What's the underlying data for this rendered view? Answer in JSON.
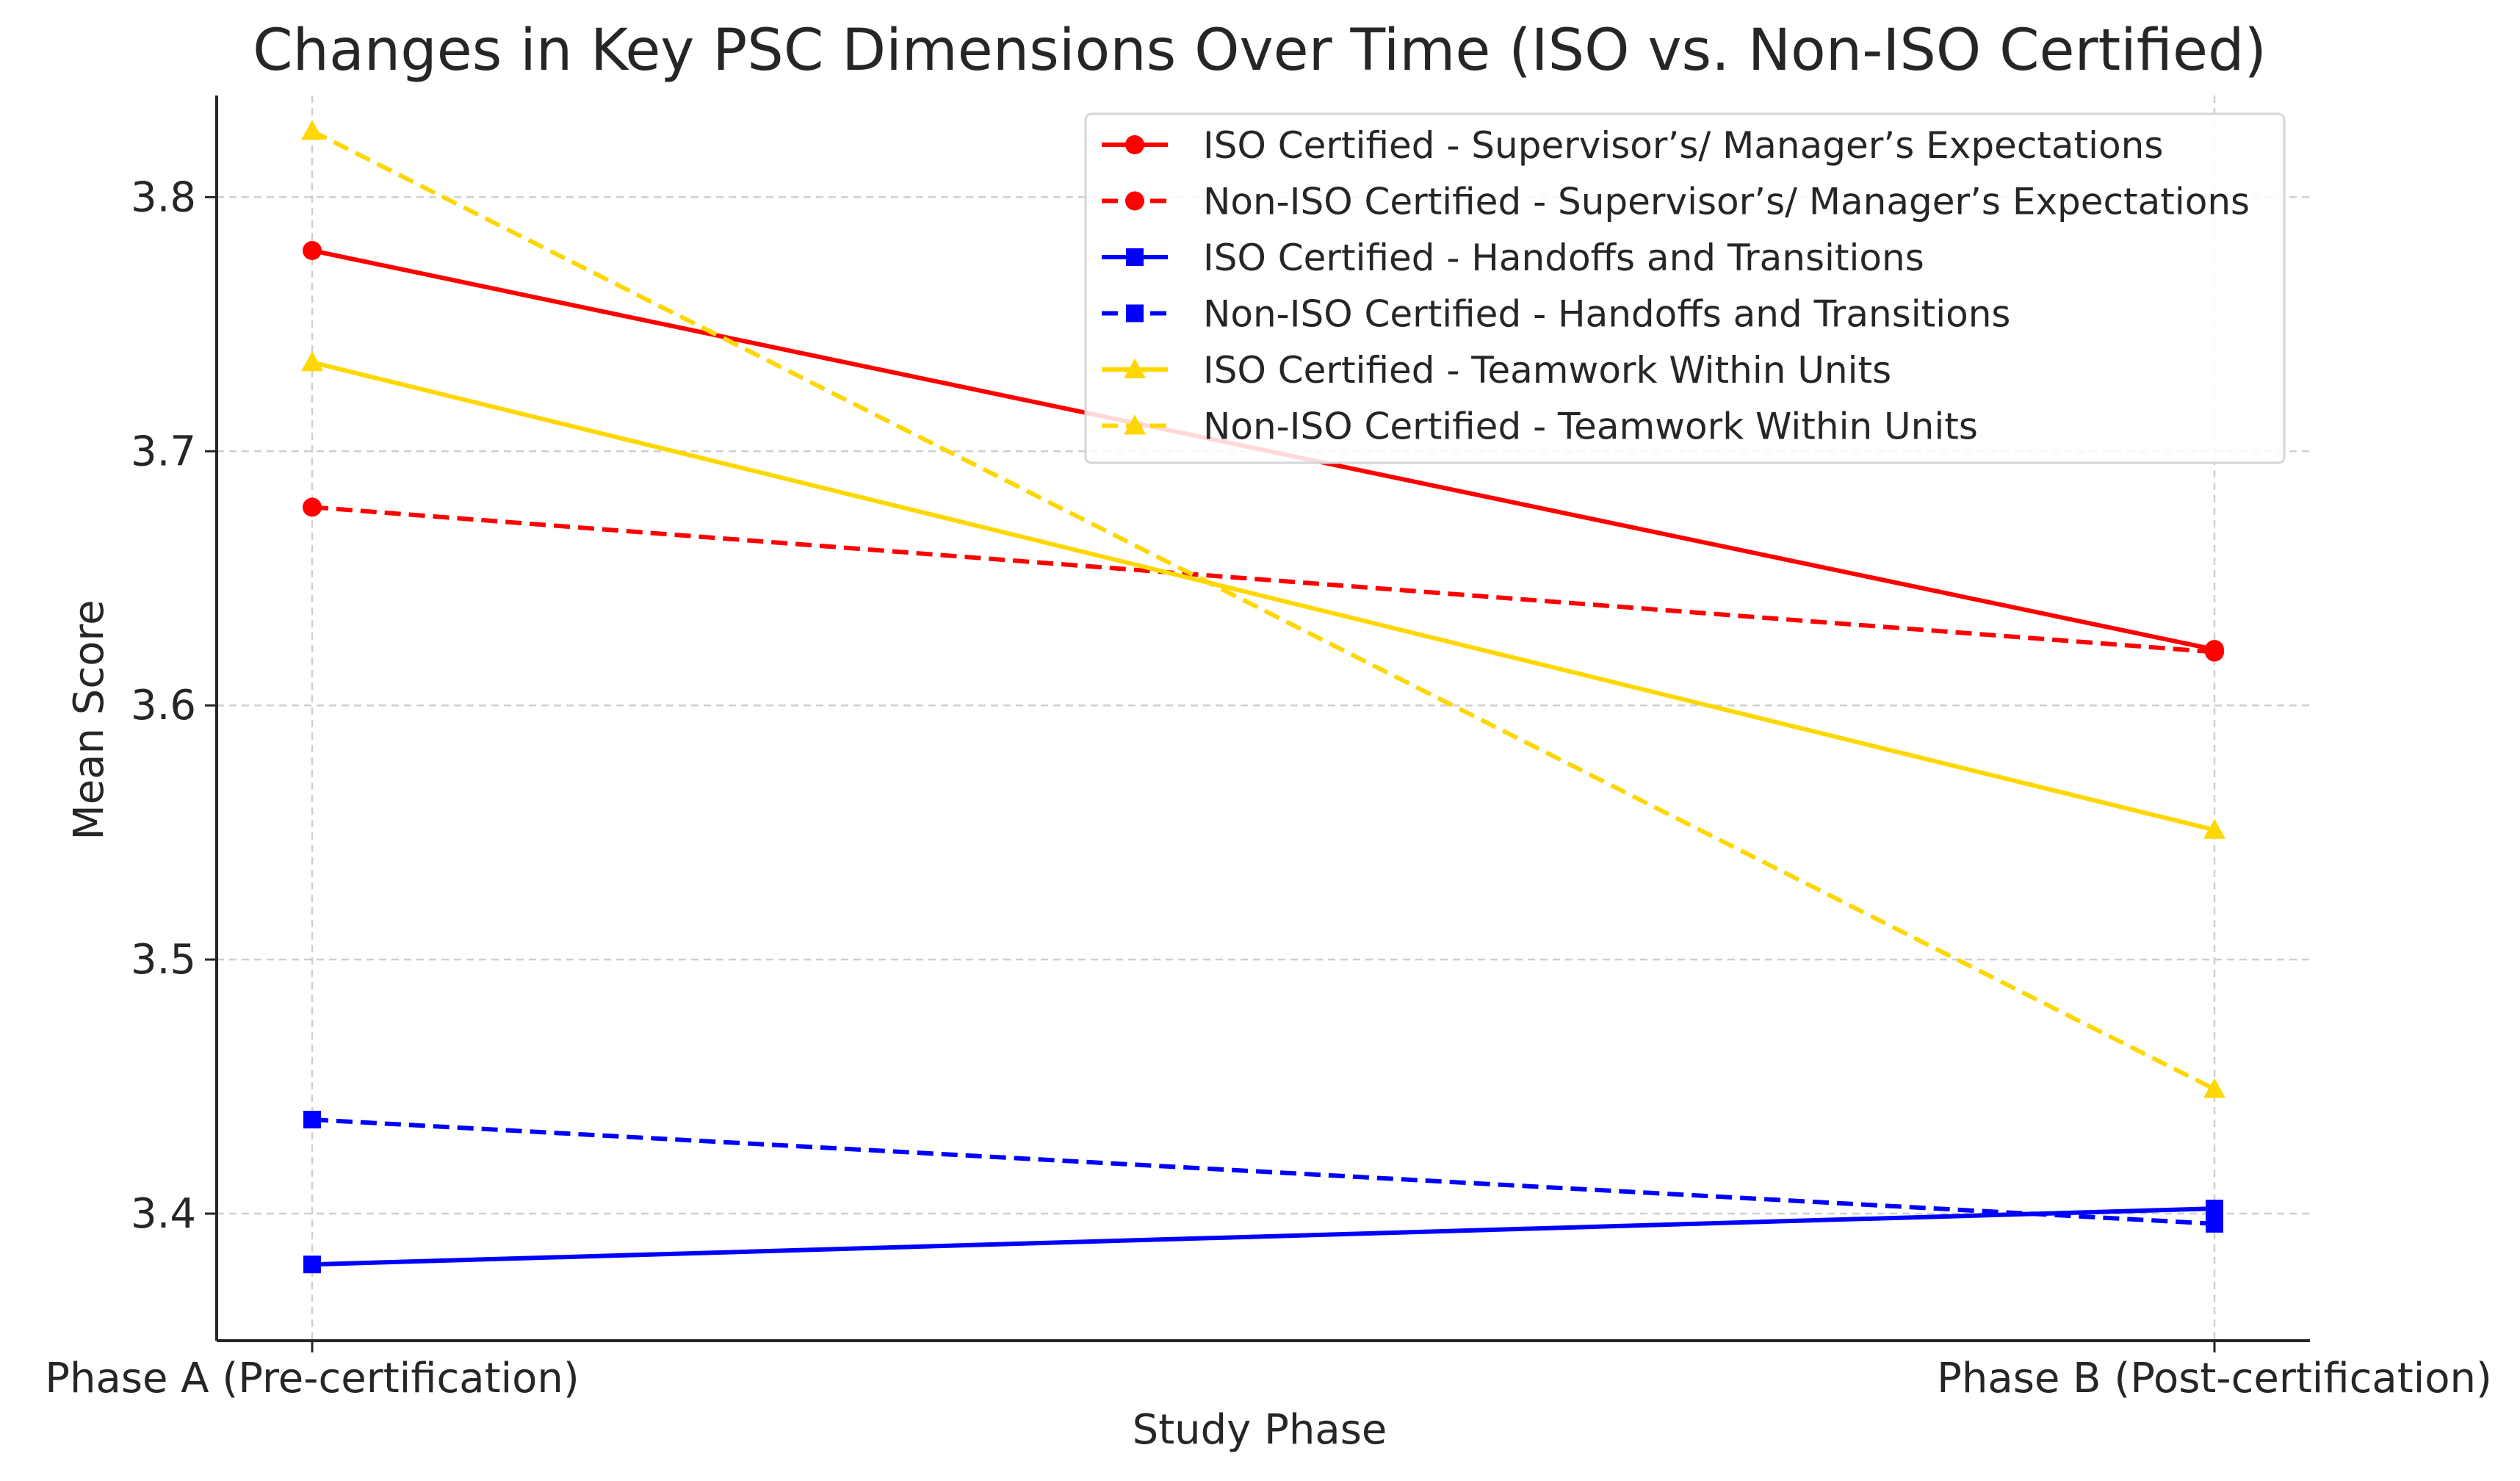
{
  "chart_data": {
    "type": "line",
    "title": "Changes in Key PSC Dimensions Over Time (ISO vs. Non-ISO Certified)",
    "xlabel": "Study Phase",
    "ylabel": "Mean Score",
    "categories": [
      "Phase A (Pre-certification)",
      "Phase B (Post-certification)"
    ],
    "ylim": [
      3.35,
      3.84
    ],
    "yticks": [
      3.4,
      3.5,
      3.6,
      3.7,
      3.8
    ],
    "ytick_labels": [
      "3.4",
      "3.5",
      "3.6",
      "3.7",
      "3.8"
    ],
    "grid": true,
    "legend_position": "top-right",
    "series": [
      {
        "name": "ISO Certified - Supervisor’s/ Manager’s Expectations",
        "values": [
          3.779,
          3.622
        ],
        "color": "#ff0000",
        "dashed": false,
        "marker": "circle"
      },
      {
        "name": "Non-ISO Certified - Supervisor’s/ Manager’s Expectations",
        "values": [
          3.678,
          3.621
        ],
        "color": "#ff0000",
        "dashed": true,
        "marker": "circle"
      },
      {
        "name": "ISO Certified - Handoffs and Transitions",
        "values": [
          3.38,
          3.402
        ],
        "color": "#0000ff",
        "dashed": false,
        "marker": "square"
      },
      {
        "name": "Non-ISO Certified - Handoffs and Transitions",
        "values": [
          3.437,
          3.396
        ],
        "color": "#0000ff",
        "dashed": true,
        "marker": "square"
      },
      {
        "name": "ISO Certified - Teamwork Within Units",
        "values": [
          3.735,
          3.551
        ],
        "color": "#ffd700",
        "dashed": false,
        "marker": "triangle"
      },
      {
        "name": "Non-ISO Certified - Teamwork Within Units",
        "values": [
          3.826,
          3.449
        ],
        "color": "#ffd700",
        "dashed": true,
        "marker": "triangle"
      }
    ]
  }
}
